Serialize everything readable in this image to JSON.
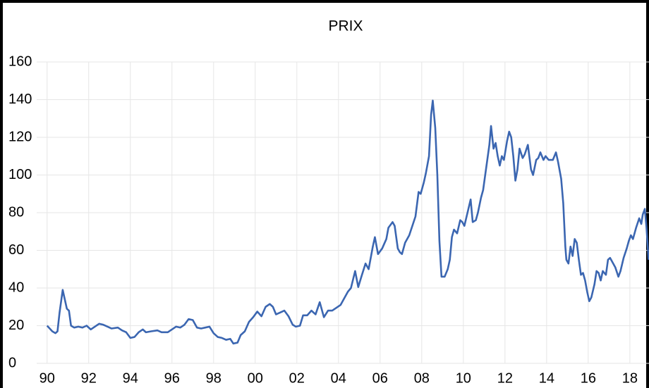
{
  "chart_data": {
    "type": "line",
    "title": "PRIX",
    "color": "#3b66b1",
    "grid": true,
    "xlim": [
      1989.5,
      2018.92
    ],
    "xticks": [
      {
        "value": 1990,
        "label": "90"
      },
      {
        "value": 1992,
        "label": "92"
      },
      {
        "value": 1994,
        "label": "94"
      },
      {
        "value": 1996,
        "label": "96"
      },
      {
        "value": 1998,
        "label": "98"
      },
      {
        "value": 2000,
        "label": "00"
      },
      {
        "value": 2002,
        "label": "02"
      },
      {
        "value": 2004,
        "label": "04"
      },
      {
        "value": 2006,
        "label": "06"
      },
      {
        "value": 2008,
        "label": "08"
      },
      {
        "value": 2010,
        "label": "10"
      },
      {
        "value": 2012,
        "label": "12"
      },
      {
        "value": 2014,
        "label": "14"
      },
      {
        "value": 2016,
        "label": "16"
      },
      {
        "value": 2018,
        "label": "18"
      }
    ],
    "ylim": [
      0,
      160
    ],
    "yticks": [
      0,
      20,
      40,
      60,
      80,
      100,
      120,
      140,
      160
    ],
    "x": [
      1990.0,
      1990.25,
      1990.4,
      1990.5,
      1990.6,
      1990.75,
      1990.85,
      1990.95,
      1991.05,
      1991.15,
      1991.3,
      1991.5,
      1991.7,
      1991.9,
      1992.1,
      1992.3,
      1992.5,
      1992.7,
      1992.9,
      1993.1,
      1993.4,
      1993.6,
      1993.8,
      1994.0,
      1994.2,
      1994.4,
      1994.6,
      1994.75,
      1995.0,
      1995.3,
      1995.5,
      1995.8,
      1996.0,
      1996.2,
      1996.4,
      1996.6,
      1996.8,
      1997.0,
      1997.2,
      1997.4,
      1997.6,
      1997.8,
      1998.0,
      1998.2,
      1998.4,
      1998.6,
      1998.8,
      1998.95,
      1999.15,
      1999.3,
      1999.5,
      1999.7,
      1999.9,
      2000.1,
      2000.3,
      2000.5,
      2000.7,
      2000.85,
      2001.0,
      2001.2,
      2001.4,
      2001.6,
      2001.8,
      2001.95,
      2002.15,
      2002.3,
      2002.5,
      2002.7,
      2002.9,
      2003.1,
      2003.3,
      2003.5,
      2003.7,
      2003.9,
      2004.1,
      2004.3,
      2004.45,
      2004.6,
      2004.8,
      2004.95,
      2005.1,
      2005.3,
      2005.45,
      2005.65,
      2005.75,
      2005.9,
      2006.1,
      2006.3,
      2006.4,
      2006.6,
      2006.7,
      2006.85,
      2006.95,
      2007.05,
      2007.2,
      2007.4,
      2007.55,
      2007.7,
      2007.85,
      2007.95,
      2008.1,
      2008.2,
      2008.35,
      2008.45,
      2008.53,
      2008.65,
      2008.75,
      2008.85,
      2008.95,
      2009.1,
      2009.25,
      2009.35,
      2009.45,
      2009.55,
      2009.7,
      2009.85,
      2009.95,
      2010.05,
      2010.2,
      2010.35,
      2010.45,
      2010.6,
      2010.7,
      2010.85,
      2010.95,
      2011.1,
      2011.25,
      2011.33,
      2011.45,
      2011.55,
      2011.65,
      2011.75,
      2011.85,
      2011.95,
      2012.1,
      2012.2,
      2012.3,
      2012.4,
      2012.5,
      2012.6,
      2012.7,
      2012.85,
      2012.95,
      2013.1,
      2013.25,
      2013.35,
      2013.5,
      2013.6,
      2013.7,
      2013.85,
      2013.95,
      2014.1,
      2014.3,
      2014.45,
      2014.55,
      2014.7,
      2014.8,
      2014.9,
      2014.95,
      2015.05,
      2015.15,
      2015.25,
      2015.35,
      2015.45,
      2015.55,
      2015.65,
      2015.75,
      2015.85,
      2015.95,
      2016.05,
      2016.15,
      2016.3,
      2016.4,
      2016.5,
      2016.6,
      2016.7,
      2016.85,
      2016.95,
      2017.05,
      2017.2,
      2017.3,
      2017.45,
      2017.55,
      2017.7,
      2017.85,
      2017.95,
      2018.05,
      2018.15,
      2018.3,
      2018.45,
      2018.55,
      2018.62,
      2018.72,
      2018.8,
      2018.9
    ],
    "values": [
      20,
      17,
      16,
      17,
      27,
      39,
      34,
      29,
      28,
      20,
      19,
      19.5,
      19,
      20,
      18,
      19.5,
      21,
      20.5,
      19.5,
      18.5,
      19,
      17.5,
      16.5,
      13.5,
      14,
      16.5,
      18,
      16.5,
      17,
      17.5,
      16.5,
      16.5,
      18,
      19.5,
      19,
      20.5,
      23.5,
      23,
      19,
      18.5,
      19,
      19.5,
      16,
      14,
      13.5,
      12.5,
      13,
      10.5,
      11,
      15,
      17,
      22,
      24.5,
      27.5,
      25,
      30,
      31.5,
      30,
      26,
      27,
      28,
      25,
      20.5,
      19.5,
      20,
      25.5,
      25.5,
      28,
      26,
      32.5,
      24.5,
      28,
      28,
      29.5,
      31,
      35,
      38,
      40,
      49,
      40.5,
      46,
      53,
      50,
      62,
      67,
      58,
      61,
      66,
      72,
      75,
      73,
      61,
      59,
      58,
      64,
      68,
      73,
      78,
      91,
      90,
      96,
      101,
      110,
      132,
      139.5,
      125,
      100,
      65,
      46,
      46,
      50,
      55,
      67,
      71,
      69,
      76,
      75,
      73,
      80,
      87,
      75,
      76,
      80,
      88,
      92,
      104,
      116,
      126,
      114,
      117,
      110,
      105,
      110,
      108,
      118,
      123,
      120,
      110,
      97,
      103,
      114,
      109,
      111,
      116,
      103,
      100,
      108,
      109,
      112,
      108,
      110,
      108,
      108,
      112,
      107,
      98,
      85,
      62,
      55,
      53,
      62,
      57,
      66,
      64,
      55,
      47,
      48,
      44,
      38,
      33,
      35,
      42,
      49,
      48,
      44,
      49,
      47,
      55,
      56,
      53,
      51,
      46,
      49,
      56,
      61,
      65,
      68,
      66,
      72,
      77,
      74,
      79,
      82,
      72,
      55
    ]
  }
}
